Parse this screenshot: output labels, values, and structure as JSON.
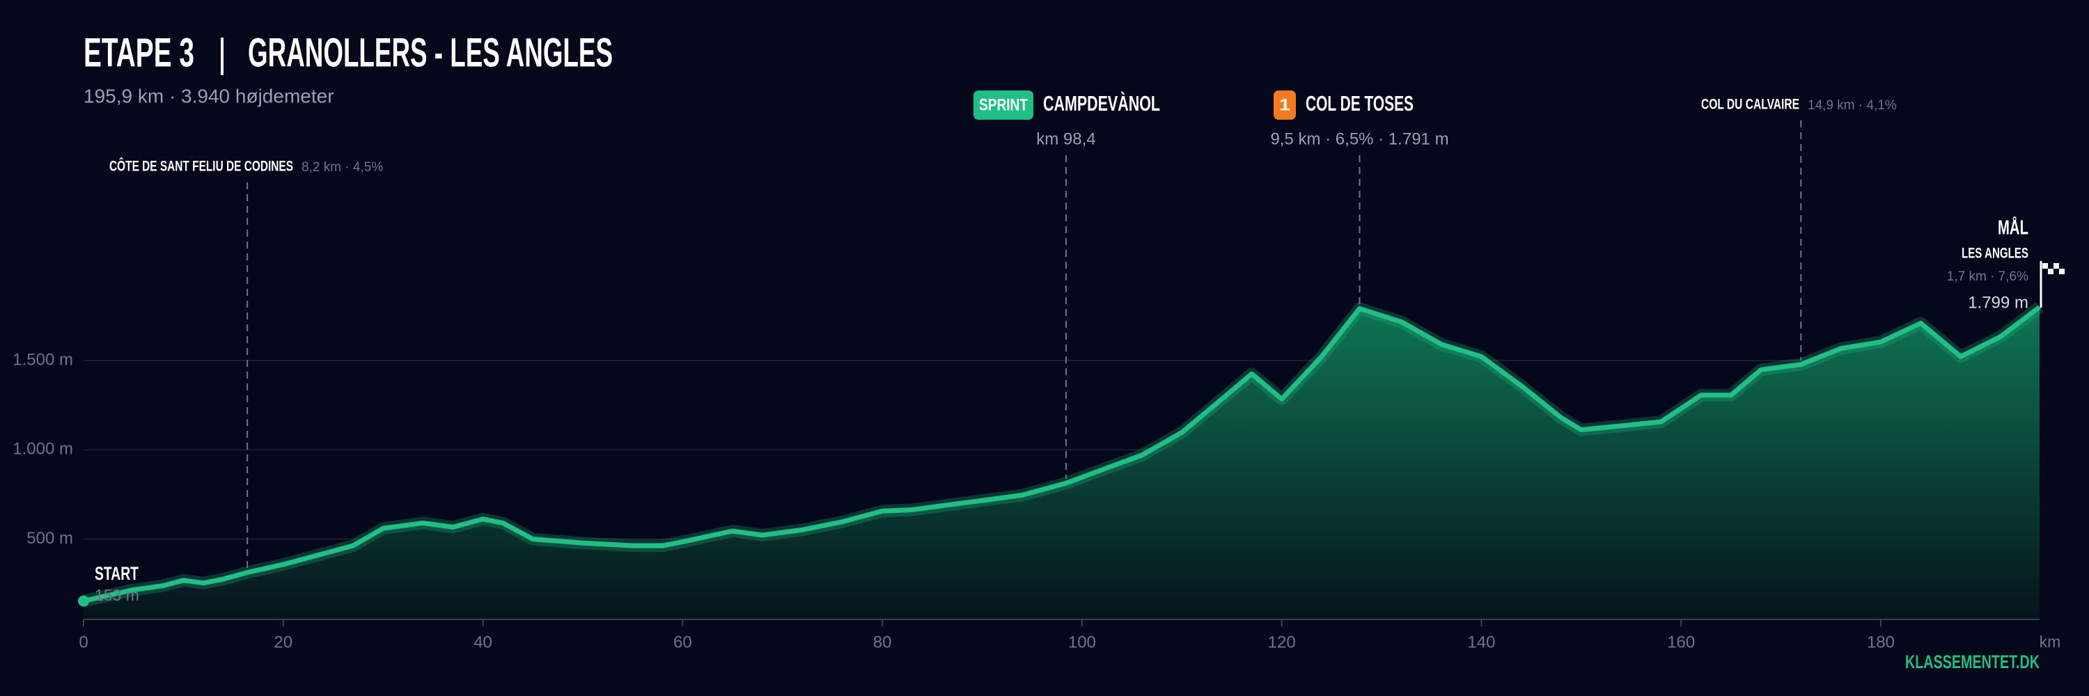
{
  "chart_data": {
    "type": "area",
    "stage": "ETAPE 3",
    "title": "GRANOLLERS - LES ANGLES",
    "subtitle": "195,9 km · 3.940 højdemeter",
    "x_label": "km",
    "brand": "KLASSEMENTET.DK",
    "x": [
      0,
      2,
      5,
      8,
      10,
      12,
      14,
      16.4,
      20,
      24,
      27,
      30,
      34,
      37,
      40,
      42,
      45,
      50,
      55,
      58,
      60,
      65,
      68,
      72,
      76,
      80,
      83,
      86,
      90,
      94,
      98.4,
      102,
      106,
      110,
      114,
      117,
      120,
      124,
      127.8,
      132,
      136,
      140,
      144,
      148,
      150,
      154,
      158,
      162,
      165,
      168,
      172,
      176,
      180,
      184,
      188,
      192,
      195.9
    ],
    "series": [
      {
        "name": "elevation",
        "color": "#1fbf85",
        "values": [
          153,
          179,
          216,
          239,
          269,
          254,
          276,
          313,
          358,
          418,
          463,
          560,
          590,
          567,
          612,
          590,
          500,
          478,
          463,
          463,
          485,
          545,
          522,
          552,
          597,
          657,
          664,
          687,
          716,
          746,
          813,
          888,
          970,
          1097,
          1284,
          1425,
          1284,
          1522,
          1791,
          1716,
          1590,
          1522,
          1358,
          1179,
          1112,
          1134,
          1157,
          1306,
          1306,
          1448,
          1478,
          1567,
          1604,
          1709,
          1522,
          1634,
          1799
        ]
      }
    ],
    "xlim": [
      0,
      195.9
    ],
    "ylim": [
      50,
      2100
    ],
    "xticks": [
      0,
      20,
      40,
      60,
      80,
      100,
      120,
      140,
      160,
      180
    ],
    "yticks": [
      {
        "value": 500,
        "label": "500 m"
      },
      {
        "value": 1000,
        "label": "1.000 m"
      },
      {
        "value": 1500,
        "label": "1.500 m"
      }
    ],
    "grid": true,
    "start": {
      "label": "START",
      "elevation_label": "153 m"
    },
    "finish": {
      "label": "MÅL",
      "name": "LES ANGLES",
      "detail": "1,7 km · 7,6%",
      "elevation_label": "1.799 m"
    },
    "annotations": [
      {
        "name": "CÔTE DE SANT FELIU DE CODINES",
        "detail": "8,2 km · 4,5%",
        "km": 16.4
      },
      {
        "badge": "SPRINT",
        "badge_color": "#1fbf85",
        "name": "CAMPDEVÀNOL",
        "detail": "km 98,4",
        "km": 98.4
      },
      {
        "badge": "1",
        "badge_color": "#f47b20",
        "name": "COL DE TOSES",
        "detail": "9,5 km · 6,5% · 1.791 m",
        "km": 127.8
      },
      {
        "name": "COL DU CALVAIRE",
        "detail": "14,9 km · 4,1%",
        "km": 172
      }
    ]
  }
}
